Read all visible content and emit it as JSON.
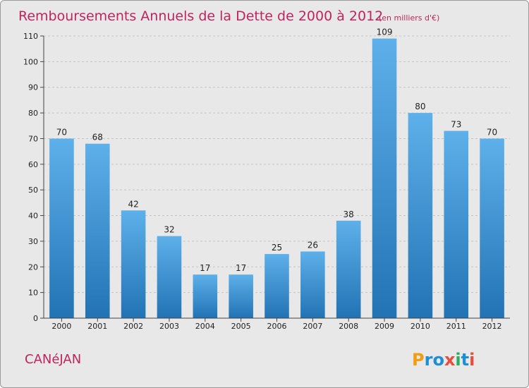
{
  "chart_data": {
    "type": "bar",
    "title": "Remboursements Annuels de la Dette de 2000 à 2012",
    "subtitle": "(en milliers d'€)",
    "categories": [
      "2000",
      "2001",
      "2002",
      "2003",
      "2004",
      "2005",
      "2006",
      "2007",
      "2008",
      "2009",
      "2010",
      "2011",
      "2012"
    ],
    "values": [
      70,
      68,
      42,
      32,
      17,
      17,
      25,
      26,
      38,
      109,
      80,
      73,
      70
    ],
    "ylim": [
      0,
      110
    ],
    "yticks": [
      0,
      10,
      20,
      30,
      40,
      50,
      60,
      70,
      80,
      90,
      100,
      110
    ],
    "grid": true,
    "legend": "none",
    "bar_color": "#3a8fd4"
  },
  "footer": {
    "commune": "CANéJAN",
    "brand": "Proxiti"
  },
  "colors": {
    "accent": "#c0245c",
    "background": "#e8e8e8",
    "logo_letters": [
      "#f39c12",
      "#1f8ed8",
      "#1f8ed8",
      "#e74c3c",
      "#27ae60",
      "#1f8ed8",
      "#e74c3c"
    ]
  }
}
